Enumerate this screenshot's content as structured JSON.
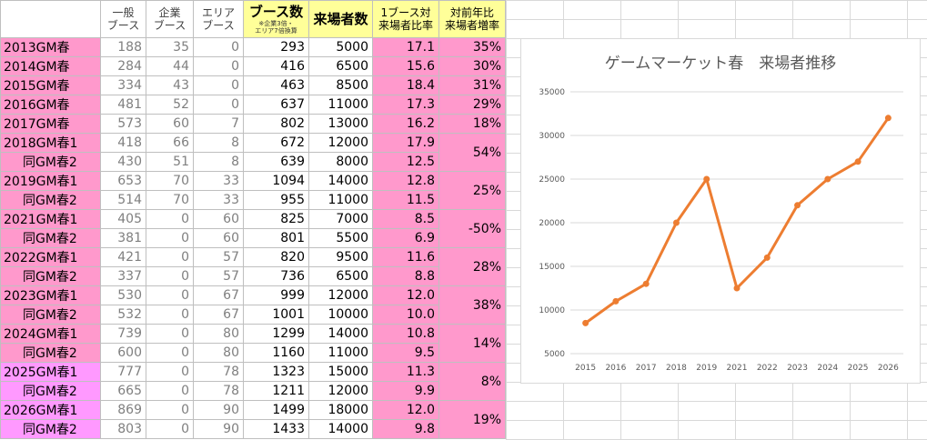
{
  "headers": {
    "general": "一般\nブース",
    "corporate": "企業\nブース",
    "area": "エリア\nブース",
    "booths": "ブース数",
    "booths_note": "※企業3倍・\nエリア7倍換算",
    "visitors": "来場者数",
    "ratio": "1ブース対\n来場者比率",
    "yoy": "対前年比\n来場者増率"
  },
  "rows": [
    {
      "label": "2013GM春",
      "general": "188",
      "corp": "35",
      "area": "0",
      "booths": "293",
      "visitors": "5000",
      "ratio": "17.1",
      "yoy": "35%",
      "style": "main"
    },
    {
      "label": "2014GM春",
      "general": "284",
      "corp": "44",
      "area": "0",
      "booths": "416",
      "visitors": "6500",
      "ratio": "15.6",
      "yoy": "30%",
      "style": "main"
    },
    {
      "label": "2015GM春",
      "general": "334",
      "corp": "43",
      "area": "0",
      "booths": "463",
      "visitors": "8500",
      "ratio": "18.4",
      "yoy": "31%",
      "style": "main"
    },
    {
      "label": "2016GM春",
      "general": "481",
      "corp": "52",
      "area": "0",
      "booths": "637",
      "visitors": "11000",
      "ratio": "17.3",
      "yoy": "29%",
      "style": "main"
    },
    {
      "label": "2017GM春",
      "general": "573",
      "corp": "60",
      "area": "7",
      "booths": "802",
      "visitors": "13000",
      "ratio": "16.2",
      "yoy": "18%",
      "style": "main"
    },
    {
      "label": "2018GM春1",
      "general": "418",
      "corp": "66",
      "area": "8",
      "booths": "672",
      "visitors": "12000",
      "ratio": "17.9",
      "yoy": "54%",
      "style": "main"
    },
    {
      "label": "同GM春2",
      "general": "430",
      "corp": "51",
      "area": "8",
      "booths": "639",
      "visitors": "8000",
      "ratio": "12.5",
      "yoy": "",
      "style": "sub"
    },
    {
      "label": "2019GM春1",
      "general": "653",
      "corp": "70",
      "area": "33",
      "booths": "1094",
      "visitors": "14000",
      "ratio": "12.8",
      "yoy": "25%",
      "style": "main"
    },
    {
      "label": "同GM春2",
      "general": "514",
      "corp": "70",
      "area": "33",
      "booths": "955",
      "visitors": "11000",
      "ratio": "11.5",
      "yoy": "",
      "style": "sub"
    },
    {
      "label": "2021GM春1",
      "general": "405",
      "corp": "0",
      "area": "60",
      "booths": "825",
      "visitors": "7000",
      "ratio": "8.5",
      "yoy": "-50%",
      "style": "main"
    },
    {
      "label": "同GM春2",
      "general": "381",
      "corp": "0",
      "area": "60",
      "booths": "801",
      "visitors": "5500",
      "ratio": "6.9",
      "yoy": "",
      "style": "sub"
    },
    {
      "label": "2022GM春1",
      "general": "421",
      "corp": "0",
      "area": "57",
      "booths": "820",
      "visitors": "9500",
      "ratio": "11.6",
      "yoy": "28%",
      "style": "main"
    },
    {
      "label": "同GM春2",
      "general": "337",
      "corp": "0",
      "area": "57",
      "booths": "736",
      "visitors": "6500",
      "ratio": "8.8",
      "yoy": "",
      "style": "sub"
    },
    {
      "label": "2023GM春1",
      "general": "530",
      "corp": "0",
      "area": "67",
      "booths": "999",
      "visitors": "12000",
      "ratio": "12.0",
      "yoy": "38%",
      "style": "main"
    },
    {
      "label": "同GM春2",
      "general": "532",
      "corp": "0",
      "area": "67",
      "booths": "1001",
      "visitors": "10000",
      "ratio": "10.0",
      "yoy": "",
      "style": "sub"
    },
    {
      "label": "2024GM春1",
      "general": "739",
      "corp": "0",
      "area": "80",
      "booths": "1299",
      "visitors": "14000",
      "ratio": "10.8",
      "yoy": "14%",
      "style": "main"
    },
    {
      "label": "同GM春2",
      "general": "600",
      "corp": "0",
      "area": "80",
      "booths": "1160",
      "visitors": "11000",
      "ratio": "9.5",
      "yoy": "",
      "style": "sub"
    },
    {
      "label": "2025GM春1",
      "general": "777",
      "corp": "0",
      "area": "78",
      "booths": "1323",
      "visitors": "15000",
      "ratio": "11.3",
      "yoy": "8%",
      "style": "violet"
    },
    {
      "label": "同GM春2",
      "general": "665",
      "corp": "0",
      "area": "78",
      "booths": "1211",
      "visitors": "12000",
      "ratio": "9.9",
      "yoy": "",
      "style": "violet-sub"
    },
    {
      "label": "2026GM春1",
      "general": "869",
      "corp": "0",
      "area": "90",
      "booths": "1499",
      "visitors": "18000",
      "ratio": "12.0",
      "yoy": "19%",
      "style": "violet"
    },
    {
      "label": "同GM春2",
      "general": "803",
      "corp": "0",
      "area": "90",
      "booths": "1433",
      "visitors": "14000",
      "ratio": "9.8",
      "yoy": "",
      "style": "violet-sub"
    }
  ],
  "colors": {
    "label_pink": "#ff99cc",
    "label_violet": "#ff99ff",
    "header_yellow": "#ffff99",
    "line": "#ed7d31",
    "gridline": "#d9d9d9"
  },
  "chart_data": {
    "type": "line",
    "title": "ゲームマーケット春　来場者推移",
    "categories": [
      "2015",
      "2016",
      "2017",
      "2018",
      "2019",
      "2021",
      "2022",
      "2023",
      "2024",
      "2025",
      "2026"
    ],
    "series": [
      {
        "values": [
          8500,
          11000,
          13000,
          20000,
          25000,
          12500,
          16000,
          22000,
          25000,
          27000,
          32000
        ]
      }
    ],
    "ylim": [
      5000,
      35000
    ],
    "yticks": [
      "5000",
      "10000",
      "15000",
      "20000",
      "25000",
      "30000",
      "35000"
    ],
    "grid": true,
    "legend": "none"
  }
}
